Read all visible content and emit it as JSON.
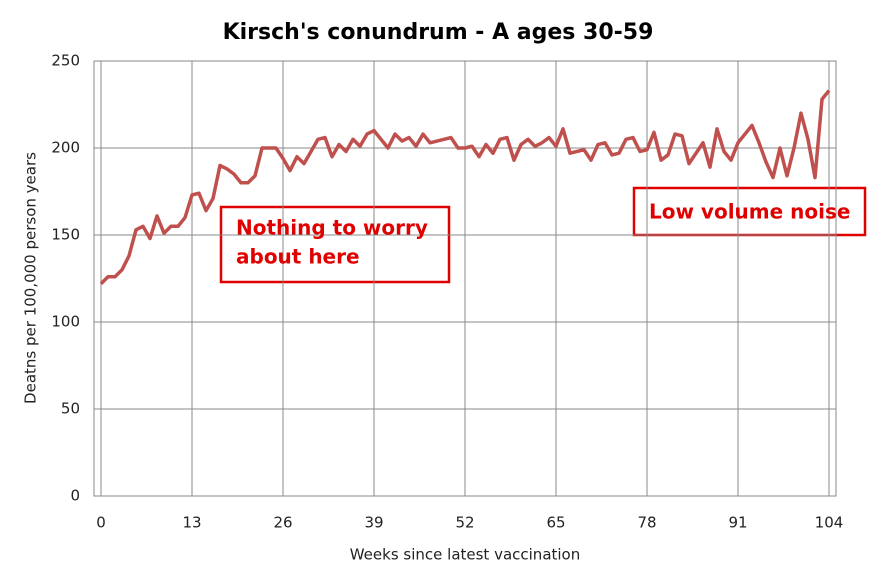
{
  "chart_data": {
    "type": "line",
    "title": "Kirsch's conundrum - A ages 30-59",
    "xlabel": "Weeks since latest vaccination",
    "ylabel": "Deatns per 100,000 person years",
    "x": [
      0,
      1,
      2,
      3,
      4,
      5,
      6,
      7,
      8,
      9,
      10,
      11,
      12,
      13,
      14,
      15,
      16,
      17,
      18,
      19,
      20,
      21,
      22,
      23,
      24,
      25,
      26,
      27,
      28,
      29,
      30,
      31,
      32,
      33,
      34,
      35,
      36,
      37,
      38,
      39,
      40,
      41,
      42,
      43,
      44,
      45,
      46,
      47,
      48,
      49,
      50,
      51,
      52,
      53,
      54,
      55,
      56,
      57,
      58,
      59,
      60,
      61,
      62,
      63,
      64,
      65,
      66,
      67,
      68,
      69,
      70,
      71,
      72,
      73,
      74,
      75,
      76,
      77,
      78,
      79,
      80,
      81,
      82,
      83,
      84,
      85,
      86,
      87,
      88,
      89,
      90,
      91,
      92,
      93,
      94,
      95,
      96,
      97,
      98,
      99,
      100,
      101,
      102,
      103,
      104
    ],
    "series": [
      {
        "name": "A ages 30-59",
        "color": "#c0504d",
        "values": [
          122,
          126,
          126,
          130,
          138,
          153,
          155,
          148,
          161,
          151,
          155,
          155,
          160,
          173,
          174,
          164,
          171,
          190,
          188,
          185,
          180,
          180,
          184,
          200,
          200,
          200,
          194,
          187,
          195,
          191,
          198,
          205,
          206,
          195,
          202,
          198,
          205,
          201,
          208,
          210,
          205,
          200,
          208,
          204,
          206,
          201,
          208,
          203,
          204,
          205,
          206,
          200,
          200,
          201,
          195,
          202,
          197,
          205,
          206,
          193,
          202,
          205,
          201,
          203,
          206,
          201,
          211,
          197,
          198,
          199,
          193,
          202,
          203,
          196,
          197,
          205,
          206,
          198,
          199,
          209,
          193,
          196,
          208,
          207,
          191,
          197,
          203,
          189,
          211,
          198,
          193,
          203,
          208,
          213,
          203,
          192,
          183,
          200,
          184,
          200,
          220,
          205,
          183,
          228,
          233
        ]
      }
    ],
    "xlim": [
      -1,
      105
    ],
    "xticks": [
      0,
      13,
      26,
      39,
      52,
      65,
      78,
      91,
      104
    ],
    "ylim": [
      0,
      250
    ],
    "yticks": [
      0,
      50,
      100,
      150,
      200,
      250
    ],
    "grid": true,
    "annotations": [
      {
        "lines": [
          "Nothing to worry",
          "about here"
        ]
      },
      {
        "lines": [
          "Low volume noise"
        ]
      }
    ]
  }
}
